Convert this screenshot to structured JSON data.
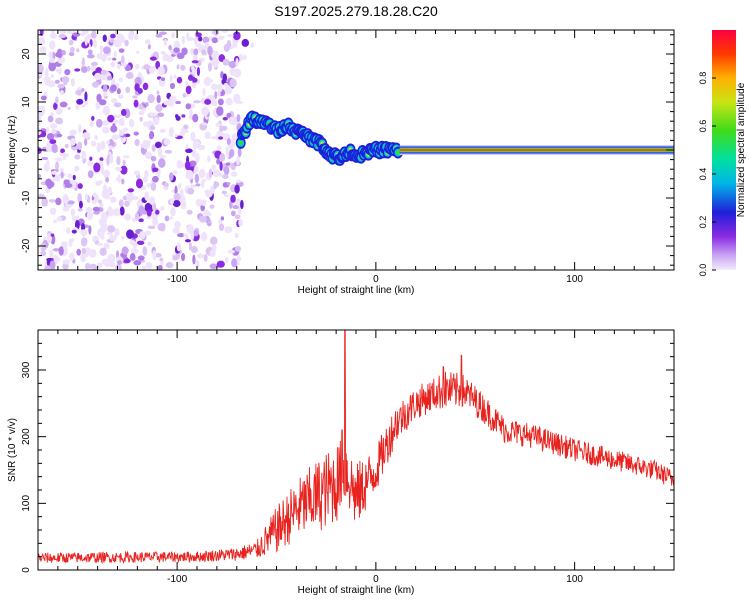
{
  "title": "S197.2025.279.18.28.C20",
  "colors": {
    "snr_line": "#e8231f",
    "trace_core": "#e0241c",
    "axis": "#000000"
  },
  "chart_data": [
    {
      "type": "heatmap",
      "name": "spectrogram",
      "xlabel": "Height of straight line (km)",
      "ylabel": "Frequency (Hz)",
      "xlim": [
        -170,
        150
      ],
      "ylim": [
        -25,
        25
      ],
      "x_ticks": [
        "-100",
        "0",
        "100"
      ],
      "x_tick_values": [
        -100,
        0,
        100
      ],
      "y_ticks": [
        "-20",
        "-10",
        "0",
        "10",
        "20"
      ],
      "y_tick_values": [
        -20,
        -10,
        0,
        10,
        20
      ],
      "noise_region_x": [
        -170,
        -68
      ],
      "trace": [
        {
          "x": -68,
          "f": 2
        },
        {
          "x": -63,
          "f": 6.5
        },
        {
          "x": -57,
          "f": 6
        },
        {
          "x": -50,
          "f": 4
        },
        {
          "x": -44,
          "f": 5
        },
        {
          "x": -38,
          "f": 3.5
        },
        {
          "x": -33,
          "f": 2.5
        },
        {
          "x": -27,
          "f": 1
        },
        {
          "x": -23,
          "f": -1
        },
        {
          "x": -18,
          "f": -1.5
        },
        {
          "x": -12,
          "f": -0.5
        },
        {
          "x": -6,
          "f": -1
        },
        {
          "x": 0,
          "f": 0
        },
        {
          "x": 5,
          "f": 0
        },
        {
          "x": 12,
          "f": 0
        }
      ],
      "steady_line": {
        "x_start": 12,
        "x_end": 150,
        "f": 0
      }
    },
    {
      "type": "colorbar",
      "label": "Normalized spectral amplitude",
      "range": [
        0,
        1
      ],
      "ticks": [
        "0.0",
        "0.2",
        "0.4",
        "0.6",
        "0.8"
      ],
      "tick_values": [
        0,
        0.2,
        0.4,
        0.6,
        0.8
      ]
    },
    {
      "type": "line",
      "name": "snr",
      "xlabel": "Height of straight line (km)",
      "ylabel": "SNR (10 * v/v)",
      "xlim": [
        -170,
        150
      ],
      "ylim": [
        0,
        360
      ],
      "x_ticks": [
        "-100",
        "0",
        "100"
      ],
      "x_tick_values": [
        -100,
        0,
        100
      ],
      "y_ticks": [
        "0",
        "100",
        "200",
        "300"
      ],
      "y_tick_values": [
        0,
        100,
        200,
        300
      ],
      "envelope": {
        "x": [
          -170,
          -90,
          -70,
          -60,
          -50,
          -40,
          -30,
          -20,
          -15,
          -10,
          0,
          10,
          20,
          30,
          35,
          45,
          55,
          65,
          80,
          100,
          120,
          140,
          150
        ],
        "mean": [
          18,
          20,
          24,
          30,
          60,
          90,
          110,
          130,
          150,
          110,
          150,
          220,
          250,
          265,
          270,
          268,
          240,
          210,
          200,
          180,
          165,
          150,
          135
        ],
        "amp": [
          8,
          8,
          10,
          14,
          35,
          45,
          55,
          60,
          55,
          50,
          35,
          30,
          25,
          25,
          30,
          25,
          22,
          20,
          18,
          17,
          16,
          15,
          15
        ]
      },
      "peaks": [
        {
          "x": -15.5,
          "y": 360
        },
        {
          "x": -17,
          "y": 210
        },
        {
          "x": 43,
          "y": 322
        },
        {
          "x": 34,
          "y": 305
        }
      ]
    }
  ]
}
